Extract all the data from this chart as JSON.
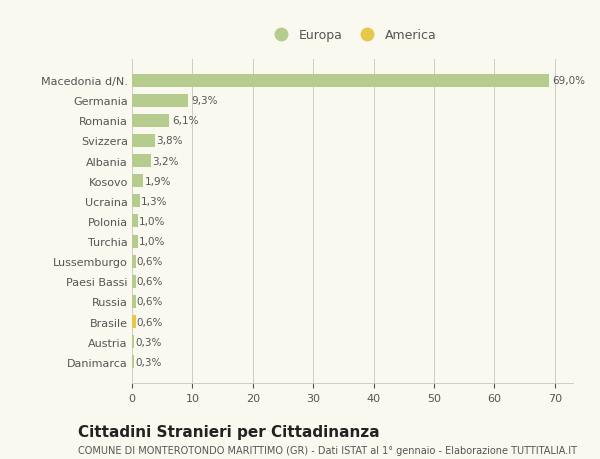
{
  "categories": [
    "Macedonia d/N.",
    "Germania",
    "Romania",
    "Svizzera",
    "Albania",
    "Kosovo",
    "Ucraina",
    "Polonia",
    "Turchia",
    "Lussemburgo",
    "Paesi Bassi",
    "Russia",
    "Brasile",
    "Austria",
    "Danimarca"
  ],
  "values": [
    69.0,
    9.3,
    6.1,
    3.8,
    3.2,
    1.9,
    1.3,
    1.0,
    1.0,
    0.6,
    0.6,
    0.6,
    0.6,
    0.3,
    0.3
  ],
  "labels": [
    "69,0%",
    "9,3%",
    "6,1%",
    "3,8%",
    "3,2%",
    "1,9%",
    "1,3%",
    "1,0%",
    "1,0%",
    "0,6%",
    "0,6%",
    "0,6%",
    "0,6%",
    "0,3%",
    "0,3%"
  ],
  "colors": [
    "#b5cc8e",
    "#b5cc8e",
    "#b5cc8e",
    "#b5cc8e",
    "#b5cc8e",
    "#b5cc8e",
    "#b5cc8e",
    "#b5cc8e",
    "#b5cc8e",
    "#b5cc8e",
    "#b5cc8e",
    "#b5cc8e",
    "#e8c84a",
    "#b5cc8e",
    "#b5cc8e"
  ],
  "legend_europa_color": "#b5cc8e",
  "legend_america_color": "#e8c84a",
  "xlim": [
    0,
    73
  ],
  "title": "Cittadini Stranieri per Cittadinanza",
  "subtitle": "COMUNE DI MONTEROTONDO MARITTIMO (GR) - Dati ISTAT al 1° gennaio - Elaborazione TUTTITALIA.IT",
  "background_color": "#f9f9f0",
  "bar_height": 0.65,
  "grid_color": "#cccccc",
  "title_fontsize": 11,
  "subtitle_fontsize": 7,
  "label_fontsize": 7.5,
  "tick_fontsize": 8,
  "legend_fontsize": 9
}
